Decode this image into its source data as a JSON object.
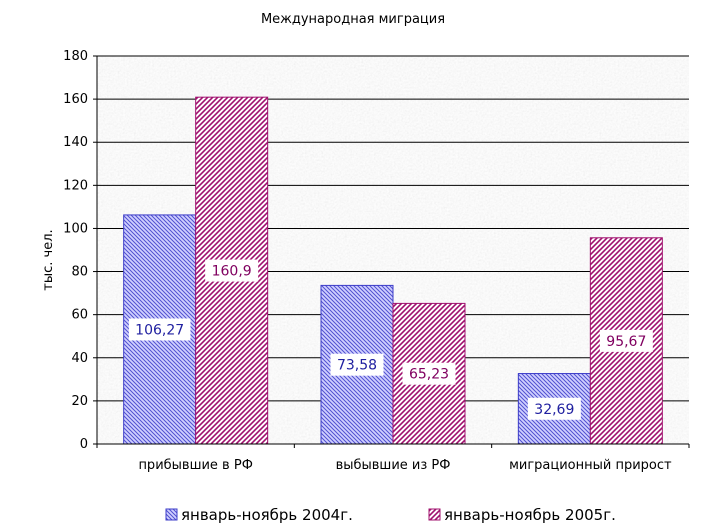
{
  "chart_data": {
    "type": "bar",
    "title": "Международная миграция",
    "ylabel": "тыс. чел.",
    "xlabel": "",
    "categories": [
      "прибывшие в РФ",
      "выбывшие из РФ",
      "миграционный прирост"
    ],
    "series": [
      {
        "name": "январь-ноябрь 2004г.",
        "values": [
          106.27,
          73.58,
          32.69
        ],
        "labels": [
          "106,27",
          "73,58",
          "32,69"
        ],
        "color": "#3c3cc8",
        "fill": "#ccccff",
        "label_color": "#2020a0"
      },
      {
        "name": "январь-ноябрь 2005г.",
        "values": [
          160.9,
          65.23,
          95.67
        ],
        "labels": [
          "160,9",
          "65,23",
          "95,67"
        ],
        "color": "#a0106e",
        "fill": "#ffffff",
        "label_color": "#800060"
      }
    ],
    "ylim": [
      0,
      180
    ],
    "yticks": [
      0,
      20,
      40,
      60,
      80,
      100,
      120,
      140,
      160,
      180
    ],
    "grid": true,
    "legend_position": "bottom"
  }
}
